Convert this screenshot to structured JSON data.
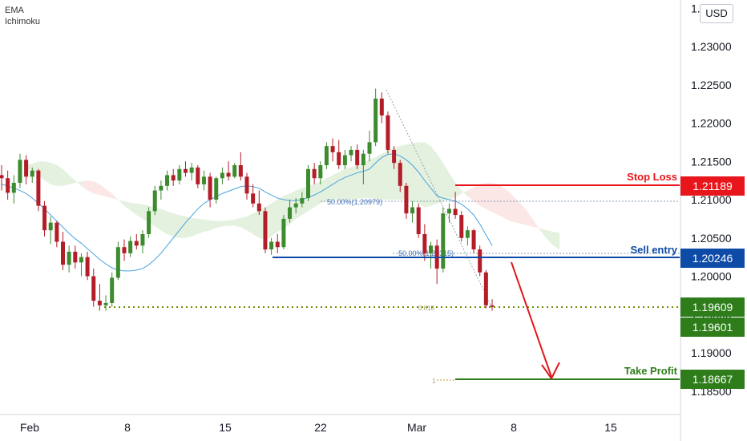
{
  "indicators": {
    "line1": "EMA",
    "line2": "Ichimoku"
  },
  "currency_button": "USD",
  "chart_data": {
    "type": "candlestick",
    "y_axis": {
      "range": [
        1.1825,
        1.2355
      ],
      "ticks": [
        "1.18500",
        "1.19000",
        "1.19500",
        "1.20000",
        "1.20500",
        "1.21000",
        "1.21500",
        "1.22000",
        "1.22500",
        "1.23000",
        "1.23500"
      ]
    },
    "x_axis": {
      "ticks": [
        "Feb",
        "8",
        "15",
        "22",
        "Mar",
        "8",
        "15"
      ]
    },
    "levels": [
      {
        "name": "Stop Loss",
        "value": "1.21189",
        "color": "#e8151b"
      },
      {
        "name": "Sell entry",
        "value": "1.20246",
        "color": "#0e4ba6"
      },
      {
        "name": "Take Profit",
        "value": "1.18667",
        "color": "#2e7d1a"
      }
    ],
    "extra_price_labels": [
      "1.19609",
      "1.19601"
    ],
    "fib_labels": [
      "50.00%(1.20979)",
      "50.00%(1.20315)",
      "0.618",
      "1"
    ],
    "ohlc": [
      [
        1.2132,
        1.2145,
        1.2112,
        1.2128
      ],
      [
        1.2128,
        1.2138,
        1.21,
        1.2109
      ],
      [
        1.2109,
        1.2132,
        1.2095,
        1.2122
      ],
      [
        1.2122,
        1.216,
        1.2115,
        1.2152
      ],
      [
        1.2152,
        1.2158,
        1.212,
        1.213
      ],
      [
        1.213,
        1.2142,
        1.2122,
        1.2138
      ],
      [
        1.2138,
        1.214,
        1.2085,
        1.2092
      ],
      [
        1.2092,
        1.2098,
        1.2052,
        1.206
      ],
      [
        1.206,
        1.2078,
        1.2042,
        1.207
      ],
      [
        1.207,
        1.2072,
        1.2038,
        1.2045
      ],
      [
        1.2045,
        1.2058,
        1.2008,
        1.2015
      ],
      [
        1.2015,
        1.204,
        1.2005,
        1.2032
      ],
      [
        1.2032,
        1.204,
        1.201,
        1.2018
      ],
      [
        1.2018,
        1.203,
        1.2,
        1.2025
      ],
      [
        1.2025,
        1.2032,
        1.1995,
        1.2
      ],
      [
        1.2,
        1.201,
        1.196,
        1.1968
      ],
      [
        1.1968,
        1.199,
        1.1955,
        1.1962
      ],
      [
        1.1962,
        1.1975,
        1.1955,
        1.1965
      ],
      [
        1.1965,
        1.2005,
        1.196,
        1.1998
      ],
      [
        1.1998,
        1.2045,
        1.1995,
        1.2038
      ],
      [
        1.2038,
        1.2048,
        1.202,
        1.203
      ],
      [
        1.203,
        1.2052,
        1.2025,
        1.2046
      ],
      [
        1.2046,
        1.2055,
        1.2035,
        1.204
      ],
      [
        1.204,
        1.206,
        1.203,
        1.2055
      ],
      [
        1.2055,
        1.209,
        1.205,
        1.2085
      ],
      [
        1.2085,
        1.2118,
        1.208,
        1.2112
      ],
      [
        1.2112,
        1.2125,
        1.21,
        1.2118
      ],
      [
        1.2118,
        1.2138,
        1.2112,
        1.2132
      ],
      [
        1.2132,
        1.214,
        1.2118,
        1.2125
      ],
      [
        1.2125,
        1.2145,
        1.212,
        1.214
      ],
      [
        1.214,
        1.215,
        1.213,
        1.2135
      ],
      [
        1.2135,
        1.2148,
        1.2125,
        1.2142
      ],
      [
        1.2142,
        1.2145,
        1.2115,
        1.212
      ],
      [
        1.212,
        1.2138,
        1.2112,
        1.213
      ],
      [
        1.213,
        1.2135,
        1.209,
        1.21
      ],
      [
        1.21,
        1.213,
        1.2095,
        1.2128
      ],
      [
        1.2128,
        1.2142,
        1.212,
        1.2135
      ],
      [
        1.2135,
        1.215,
        1.2125,
        1.213
      ],
      [
        1.213,
        1.2148,
        1.2128,
        1.2145
      ],
      [
        1.2145,
        1.2162,
        1.2125,
        1.213
      ],
      [
        1.213,
        1.2135,
        1.21,
        1.2108
      ],
      [
        1.2108,
        1.212,
        1.209,
        1.2095
      ],
      [
        1.2095,
        1.2112,
        1.208,
        1.2085
      ],
      [
        1.2085,
        1.209,
        1.203,
        1.2035
      ],
      [
        1.2035,
        1.205,
        1.2028,
        1.2045
      ],
      [
        1.2045,
        1.2055,
        1.203,
        1.2038
      ],
      [
        1.2038,
        1.208,
        1.2035,
        1.2075
      ],
      [
        1.2075,
        1.21,
        1.207,
        1.209
      ],
      [
        1.209,
        1.2102,
        1.2082,
        1.2095
      ],
      [
        1.2095,
        1.211,
        1.209,
        1.2102
      ],
      [
        1.2102,
        1.2145,
        1.2098,
        1.214
      ],
      [
        1.214,
        1.2148,
        1.212,
        1.2128
      ],
      [
        1.2128,
        1.215,
        1.212,
        1.2145
      ],
      [
        1.2145,
        1.2175,
        1.214,
        1.217
      ],
      [
        1.217,
        1.218,
        1.215,
        1.2162
      ],
      [
        1.2162,
        1.2178,
        1.214,
        1.2145
      ],
      [
        1.2145,
        1.2165,
        1.214,
        1.2158
      ],
      [
        1.2158,
        1.217,
        1.215,
        1.2165
      ],
      [
        1.2165,
        1.2172,
        1.214,
        1.2145
      ],
      [
        1.2145,
        1.2165,
        1.212,
        1.216
      ],
      [
        1.216,
        1.219,
        1.215,
        1.2175
      ],
      [
        1.2175,
        1.2245,
        1.217,
        1.2232
      ],
      [
        1.2232,
        1.224,
        1.22,
        1.221
      ],
      [
        1.221,
        1.2215,
        1.216,
        1.2165
      ],
      [
        1.2165,
        1.217,
        1.214,
        1.2148
      ],
      [
        1.2148,
        1.2152,
        1.211,
        1.2118
      ],
      [
        1.2118,
        1.2122,
        1.2075,
        1.2082
      ],
      [
        1.2082,
        1.2098,
        1.207,
        1.209
      ],
      [
        1.209,
        1.2095,
        1.205,
        1.2055
      ],
      [
        1.2055,
        1.2068,
        1.202,
        1.203
      ],
      [
        1.203,
        1.2045,
        1.201,
        1.204
      ],
      [
        1.204,
        1.2048,
        1.199,
        1.201
      ],
      [
        1.201,
        1.209,
        1.2005,
        1.2082
      ],
      [
        1.2082,
        1.2095,
        1.207,
        1.2088
      ],
      [
        1.2088,
        1.211,
        1.2075,
        1.208
      ],
      [
        1.208,
        1.2085,
        1.2045,
        1.205
      ],
      [
        1.205,
        1.2065,
        1.204,
        1.206
      ],
      [
        1.206,
        1.2062,
        1.203,
        1.2035
      ],
      [
        1.2035,
        1.204,
        1.2,
        1.2005
      ],
      [
        1.2005,
        1.2008,
        1.1958,
        1.1962
      ],
      [
        1.1962,
        1.197,
        1.1955,
        1.196
      ]
    ],
    "ema": [
      1.212,
      1.2118,
      1.2115,
      1.2112,
      1.2108,
      1.2102,
      1.2095,
      1.2088,
      1.208,
      1.2072,
      1.2064,
      1.2056,
      1.2049,
      1.2043,
      1.2036,
      1.2029,
      1.2022,
      1.2016,
      1.2011,
      1.2008,
      1.2007,
      1.2007,
      1.2008,
      1.201,
      1.2015,
      1.2022,
      1.203,
      1.204,
      1.205,
      1.206,
      1.207,
      1.2079,
      1.2088,
      1.2095,
      1.21,
      1.2104,
      1.2108,
      1.2111,
      1.2114,
      1.2117,
      1.2118,
      1.2117,
      1.2115,
      1.211,
      1.2106,
      1.2102,
      1.21,
      1.2099,
      1.2099,
      1.21,
      1.2103,
      1.2106,
      1.211,
      1.2115,
      1.212,
      1.2125,
      1.2129,
      1.2132,
      1.2135,
      1.2137,
      1.214,
      1.2148,
      1.2155,
      1.2159,
      1.216,
      1.2157,
      1.2152,
      1.2145,
      1.2136,
      1.2125,
      1.2115,
      1.2105,
      1.2102,
      1.21,
      1.2098,
      1.2094,
      1.2088,
      1.208,
      1.2068,
      1.2054,
      1.204
    ],
    "cloud": [
      [
        1.2145,
        1.214
      ],
      [
        1.2147,
        1.2138
      ],
      [
        1.215,
        1.2132
      ],
      [
        1.215,
        1.2125
      ],
      [
        1.2148,
        1.212
      ],
      [
        1.2145,
        1.2118
      ],
      [
        1.214,
        1.2118
      ],
      [
        1.2132,
        1.212
      ],
      [
        1.2125,
        1.2122
      ],
      [
        1.2118,
        1.2124
      ],
      [
        1.2112,
        1.2125
      ],
      [
        1.2108,
        1.2124
      ],
      [
        1.2106,
        1.212
      ],
      [
        1.2104,
        1.2114
      ],
      [
        1.2102,
        1.2108
      ],
      [
        1.21,
        1.21
      ],
      [
        1.2098,
        1.2092
      ],
      [
        1.2096,
        1.2086
      ],
      [
        1.2095,
        1.208
      ],
      [
        1.2094,
        1.2075
      ],
      [
        1.2092,
        1.207
      ],
      [
        1.209,
        1.2065
      ],
      [
        1.2088,
        1.206
      ],
      [
        1.2085,
        1.2055
      ],
      [
        1.2082,
        1.2052
      ],
      [
        1.208,
        1.205
      ],
      [
        1.2078,
        1.205
      ],
      [
        1.2076,
        1.2052
      ],
      [
        1.2075,
        1.2055
      ],
      [
        1.2074,
        1.2058
      ],
      [
        1.2073,
        1.206
      ],
      [
        1.2072,
        1.2063
      ],
      [
        1.2072,
        1.2065
      ],
      [
        1.2073,
        1.2066
      ],
      [
        1.2074,
        1.2066
      ],
      [
        1.2076,
        1.2064
      ],
      [
        1.2078,
        1.206
      ],
      [
        1.2082,
        1.2055
      ],
      [
        1.2086,
        1.205
      ],
      [
        1.209,
        1.2048
      ],
      [
        1.2095,
        1.2052
      ],
      [
        1.21,
        1.2058
      ],
      [
        1.2105,
        1.2062
      ],
      [
        1.2108,
        1.2068
      ],
      [
        1.2112,
        1.2075
      ],
      [
        1.2115,
        1.208
      ],
      [
        1.2118,
        1.2085
      ],
      [
        1.212,
        1.209
      ],
      [
        1.2124,
        1.2095
      ],
      [
        1.2128,
        1.2098
      ],
      [
        1.2132,
        1.21
      ],
      [
        1.2136,
        1.21
      ],
      [
        1.214,
        1.21
      ],
      [
        1.2142,
        1.21
      ],
      [
        1.2145,
        1.2101
      ],
      [
        1.2148,
        1.2102
      ],
      [
        1.2152,
        1.2102
      ],
      [
        1.2156,
        1.2101
      ],
      [
        1.216,
        1.21
      ],
      [
        1.2164,
        1.21
      ],
      [
        1.2168,
        1.21
      ],
      [
        1.217,
        1.21
      ],
      [
        1.2172,
        1.21
      ],
      [
        1.2174,
        1.2098
      ],
      [
        1.2175,
        1.2095
      ],
      [
        1.2175,
        1.209
      ],
      [
        1.217,
        1.2092
      ],
      [
        1.216,
        1.2095
      ],
      [
        1.2148,
        1.2098
      ],
      [
        1.2135,
        1.21
      ],
      [
        1.2122,
        1.2103
      ],
      [
        1.2112,
        1.2108
      ],
      [
        1.2104,
        1.2112
      ],
      [
        1.2098,
        1.2116
      ],
      [
        1.2092,
        1.212
      ],
      [
        1.2088,
        1.2122
      ],
      [
        1.2084,
        1.2122
      ],
      [
        1.208,
        1.212
      ],
      [
        1.2076,
        1.2115
      ],
      [
        1.2072,
        1.2108
      ],
      [
        1.207,
        1.21
      ],
      [
        1.2068,
        1.2092
      ],
      [
        1.2066,
        1.2082
      ],
      [
        1.2064,
        1.207
      ],
      [
        1.2062,
        1.2058
      ],
      [
        1.206,
        1.2048
      ],
      [
        1.2058,
        1.204
      ],
      [
        1.2057,
        1.2035
      ]
    ],
    "colors": {
      "up": "#3d8b2f",
      "down": "#b31d28",
      "ema": "#4aa3df",
      "cloud_green": "#6ab04c",
      "cloud_red": "#ef7a7a",
      "fib": "#8a9bb5",
      "support": "#6b8e00",
      "arrow": "#e0191e",
      "stop": "#e8151b",
      "entry": "#0e4ba6",
      "tp": "#2e7d1a"
    }
  }
}
